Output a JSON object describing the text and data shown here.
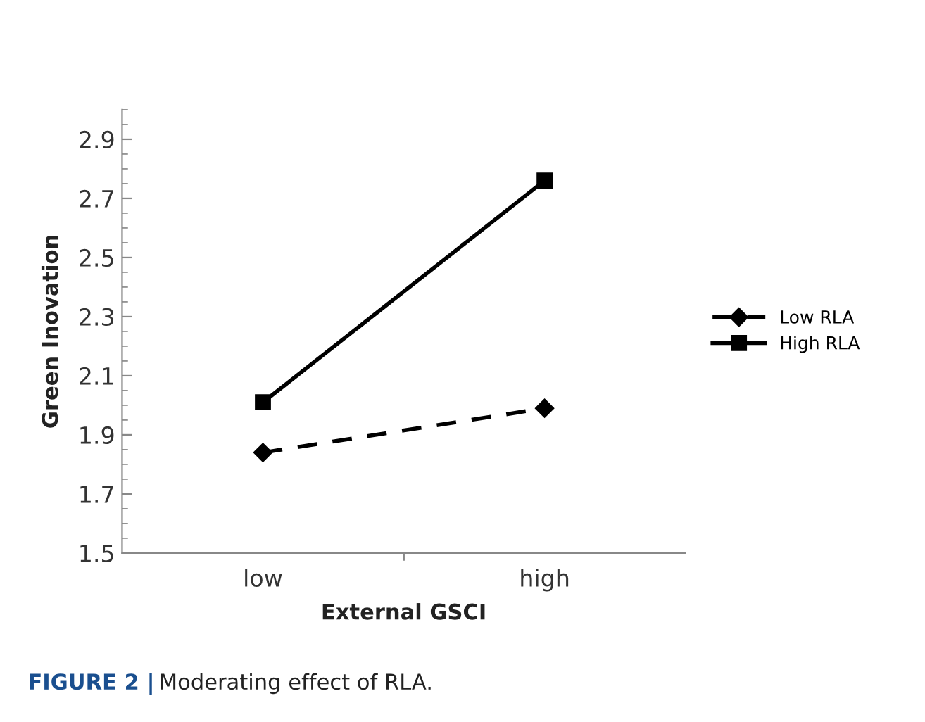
{
  "chart_data": {
    "type": "line",
    "xlabel": "External GSCI",
    "ylabel": "Green Inovation",
    "categories": [
      "low",
      "high"
    ],
    "series": [
      {
        "name": "Low RLA",
        "color": "#000000",
        "line_style": "dashed",
        "marker": "diamond",
        "values": [
          1.84,
          1.99
        ]
      },
      {
        "name": "High RLA",
        "color": "#000000",
        "line_style": "solid",
        "marker": "square",
        "values": [
          2.01,
          2.76
        ]
      }
    ],
    "ylim": [
      1.5,
      3.0
    ],
    "yticks": [
      1.5,
      1.7,
      1.9,
      2.1,
      2.3,
      2.5,
      2.7,
      2.9
    ],
    "grid": false,
    "legend": "right",
    "annotations": [
      "FIGURE 2 | Moderating effect of RLA."
    ]
  }
}
